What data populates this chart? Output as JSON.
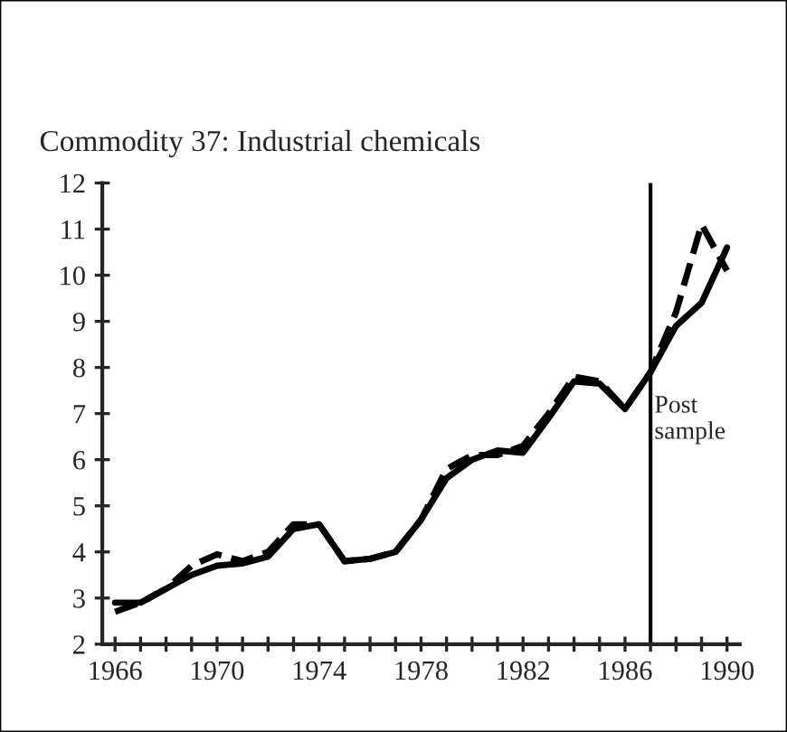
{
  "chart_data": {
    "type": "line",
    "title": "Commodity 37: Industrial chemicals",
    "x": [
      1966,
      1967,
      1968,
      1969,
      1970,
      1971,
      1972,
      1973,
      1974,
      1975,
      1976,
      1977,
      1978,
      1979,
      1980,
      1981,
      1982,
      1983,
      1984,
      1985,
      1986,
      1987,
      1988,
      1989,
      1990
    ],
    "series": [
      {
        "color": "#000000",
        "line_style": "solid",
        "values": [
          2.9,
          2.9,
          3.2,
          3.5,
          3.7,
          3.75,
          3.9,
          4.5,
          4.6,
          3.8,
          3.85,
          4.0,
          4.7,
          5.6,
          6.0,
          6.2,
          6.15,
          6.9,
          7.7,
          7.65,
          7.1,
          7.9,
          8.9,
          9.4,
          10.6
        ]
      },
      {
        "color": "#000000",
        "line_style": "dashed",
        "values": [
          2.7,
          2.9,
          3.2,
          3.7,
          3.95,
          3.8,
          4.0,
          4.6,
          4.6,
          3.8,
          3.85,
          4.0,
          4.7,
          5.8,
          6.1,
          6.1,
          6.3,
          7.0,
          7.8,
          7.7,
          7.1,
          7.9,
          9.2,
          11.1,
          10.1
        ]
      }
    ],
    "xlim": [
      1965.5,
      1990.5
    ],
    "ylim": [
      2,
      12
    ],
    "xticks": [
      1966,
      {
        "value": 1967,
        "label": null
      },
      {
        "value": 1968,
        "label": null
      },
      {
        "value": 1969,
        "label": null
      },
      1970,
      {
        "value": 1971,
        "label": null
      },
      {
        "value": 1972,
        "label": null
      },
      {
        "value": 1973,
        "label": null
      },
      1974,
      {
        "value": 1975,
        "label": null
      },
      {
        "value": 1976,
        "label": null
      },
      {
        "value": 1977,
        "label": null
      },
      1978,
      {
        "value": 1979,
        "label": null
      },
      {
        "value": 1980,
        "label": null
      },
      {
        "value": 1981,
        "label": null
      },
      1982,
      {
        "value": 1983,
        "label": null
      },
      {
        "value": 1984,
        "label": null
      },
      {
        "value": 1985,
        "label": null
      },
      1986,
      {
        "value": 1987,
        "label": null
      },
      {
        "value": 1988,
        "label": null
      },
      {
        "value": 1989,
        "label": null
      },
      1990
    ],
    "yticks": [
      2,
      3,
      4,
      5,
      6,
      7,
      8,
      9,
      10,
      11,
      12
    ],
    "ref_lines": [
      {
        "axis": "x",
        "value": 1987,
        "label": "Post\nsample",
        "color": "#000000"
      }
    ],
    "grid": false,
    "legend": false
  }
}
